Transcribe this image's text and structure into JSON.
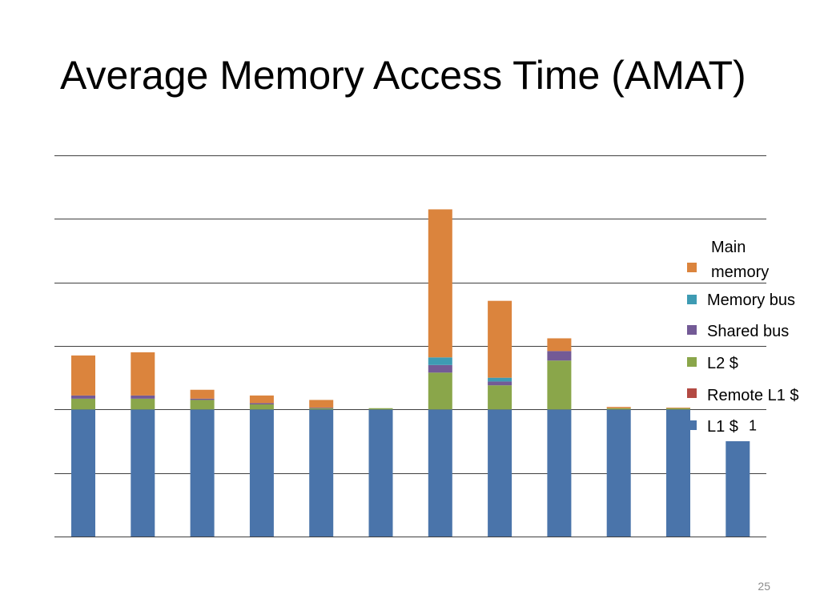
{
  "slide": {
    "title": "Average Memory Access Time (AMAT)",
    "page_number": "25"
  },
  "chart_data": {
    "type": "bar",
    "stacked": true,
    "title": "",
    "xlabel": "",
    "ylabel": "",
    "ylim": [
      0,
      6
    ],
    "grid": true,
    "legend_position": "right",
    "categories": [
      "",
      "",
      "",
      "",
      "",
      "",
      "",
      "",
      "",
      "",
      "",
      ""
    ],
    "annotations": [
      {
        "text": "1",
        "near_value": 2.0
      }
    ],
    "series": [
      {
        "name": "L1 $",
        "color": "#4a74aa",
        "values": [
          2.0,
          2.0,
          2.0,
          2.0,
          2.0,
          2.0,
          2.0,
          2.0,
          2.0,
          2.0,
          2.0,
          1.5
        ]
      },
      {
        "name": "Remote L1 $",
        "color": "#b34a43",
        "values": [
          0,
          0,
          0,
          0,
          0,
          0,
          0,
          0,
          0,
          0,
          0,
          0
        ]
      },
      {
        "name": "L2 $",
        "color": "#8aa64a",
        "values": [
          0.17,
          0.17,
          0.15,
          0.08,
          0.02,
          0.02,
          0.58,
          0.38,
          0.77,
          0.02,
          0.02,
          0
        ]
      },
      {
        "name": "Shared bus",
        "color": "#735a96",
        "values": [
          0.05,
          0.05,
          0.02,
          0.02,
          0.01,
          0,
          0.12,
          0.06,
          0.15,
          0,
          0,
          0
        ]
      },
      {
        "name": "Memory bus",
        "color": "#3e9bb3",
        "values": [
          0,
          0,
          0,
          0,
          0,
          0,
          0.12,
          0.06,
          0,
          0,
          0,
          0
        ]
      },
      {
        "name": "Main memory",
        "color": "#db843d",
        "values": [
          0.63,
          0.68,
          0.14,
          0.12,
          0.12,
          0,
          2.33,
          1.21,
          0.2,
          0.02,
          0.01,
          0
        ]
      }
    ]
  },
  "legend": {
    "items": [
      {
        "label_lines": [
          "Main",
          "memory"
        ],
        "color": "#db843d"
      },
      {
        "label_lines": [
          "Memory bus"
        ],
        "color": "#3e9bb3"
      },
      {
        "label_lines": [
          "Shared bus"
        ],
        "color": "#735a96"
      },
      {
        "label_lines": [
          "L2 $"
        ],
        "color": "#8aa64a"
      },
      {
        "label_lines": [
          "Remote L1 $"
        ],
        "color": "#b34a43"
      },
      {
        "label_lines": [
          "L1 $"
        ],
        "color": "#4a74aa"
      }
    ]
  }
}
